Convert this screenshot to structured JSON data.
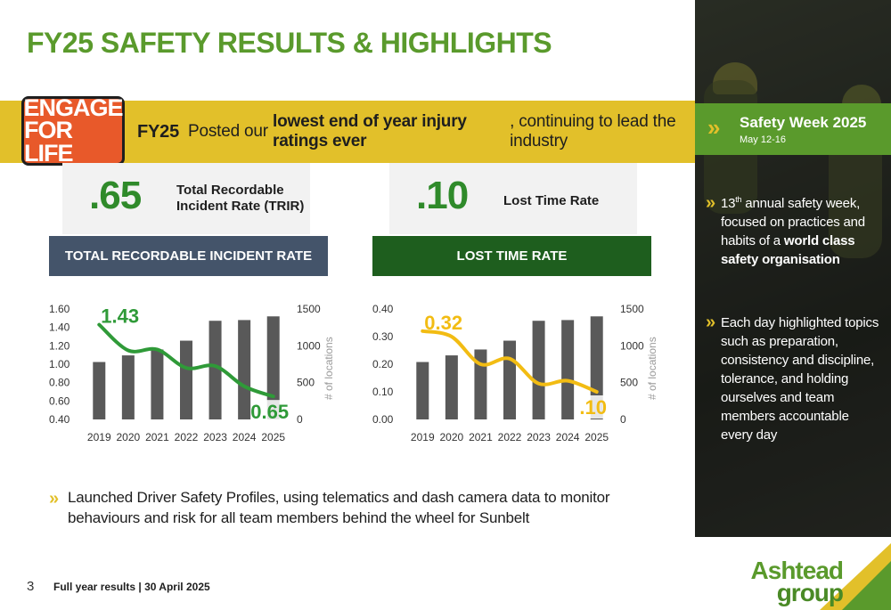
{
  "title": "FY25 SAFETY RESULTS & HIGHLIGHTS",
  "logo": {
    "line1": "ENGAGE",
    "line2": "FOR LIFE"
  },
  "banner": {
    "lead": "FY25",
    "text_before": "Posted our ",
    "text_bold": "lowest end of year injury ratings ever",
    "text_after": ", continuing to lead the industry"
  },
  "kpis": [
    {
      "value": ".65",
      "label_line1": "Total Recordable",
      "label_line2": "Incident Rate (TRIR)"
    },
    {
      "value": ".10",
      "label_line1": "Lost Time Rate",
      "label_line2": ""
    }
  ],
  "colors": {
    "green_title": "#5a9a2c",
    "kpi_green": "#2f8a2a",
    "banner_yellow": "#e2c02a",
    "trir_header": "#44546a",
    "ltr_header": "#1e5e1e",
    "bar_gray": "#595959",
    "trir_line": "#2f9a38",
    "ltr_line": "#f2bc13"
  },
  "chart_data": [
    {
      "type": "bar+line",
      "title": "TOTAL RECORDABLE INCIDENT RATE",
      "categories": [
        "2019",
        "2020",
        "2021",
        "2022",
        "2023",
        "2024",
        "2025"
      ],
      "left_axis": {
        "ylim": [
          0.4,
          1.6
        ],
        "ticks": [
          "1.60",
          "1.40",
          "1.20",
          "1.00",
          "0.80",
          "0.60",
          "0.40"
        ]
      },
      "right_axis": {
        "ylabel": "# of locations",
        "ylim": [
          0,
          1500
        ],
        "ticks": [
          "1500",
          "1000",
          "500",
          "0"
        ]
      },
      "bars": {
        "axis": "right",
        "values": [
          780,
          870,
          950,
          1070,
          1340,
          1350,
          1400
        ]
      },
      "line": {
        "axis": "left",
        "values": [
          1.43,
          1.15,
          1.16,
          0.96,
          0.98,
          0.76,
          0.65
        ]
      },
      "annotations": {
        "first": "1.43",
        "last": "0.65"
      }
    },
    {
      "type": "bar+line",
      "title": "LOST TIME RATE",
      "categories": [
        "2019",
        "2020",
        "2021",
        "2022",
        "2023",
        "2024",
        "2025"
      ],
      "left_axis": {
        "ylim": [
          0.0,
          0.4
        ],
        "ticks": [
          "0.40",
          "0.30",
          "0.20",
          "0.10",
          "0.00"
        ]
      },
      "right_axis": {
        "ylabel": "# of locations",
        "ylim": [
          0,
          1500
        ],
        "ticks": [
          "1500",
          "1000",
          "500",
          "0"
        ]
      },
      "bars": {
        "axis": "right",
        "values": [
          780,
          870,
          950,
          1070,
          1340,
          1350,
          1400
        ]
      },
      "line": {
        "axis": "left",
        "values": [
          0.32,
          0.3,
          0.2,
          0.22,
          0.13,
          0.14,
          0.1
        ]
      },
      "annotations": {
        "first": "0.32",
        "last": ".10"
      }
    }
  ],
  "bottom_note": "Launched Driver Safety Profiles, using telematics and dash camera data to monitor behaviours and risk for all team members behind the wheel for Sunbelt",
  "sidebar": {
    "heading": "Safety Week 2025",
    "subheading": "May 12-16",
    "item1": {
      "num": "13",
      "sup": "th",
      "text": " annual safety week, focused on practices and habits of a ",
      "bold": "world class safety organisation"
    },
    "item2": "Each day highlighted topics such as preparation, consistency and discipline, tolerance, and holding ourselves and team members accountable every day"
  },
  "footer": {
    "page": "3",
    "text": "Full year results | 30 April 2025"
  },
  "brand": {
    "line1": "Ashtead",
    "line2": "group"
  }
}
